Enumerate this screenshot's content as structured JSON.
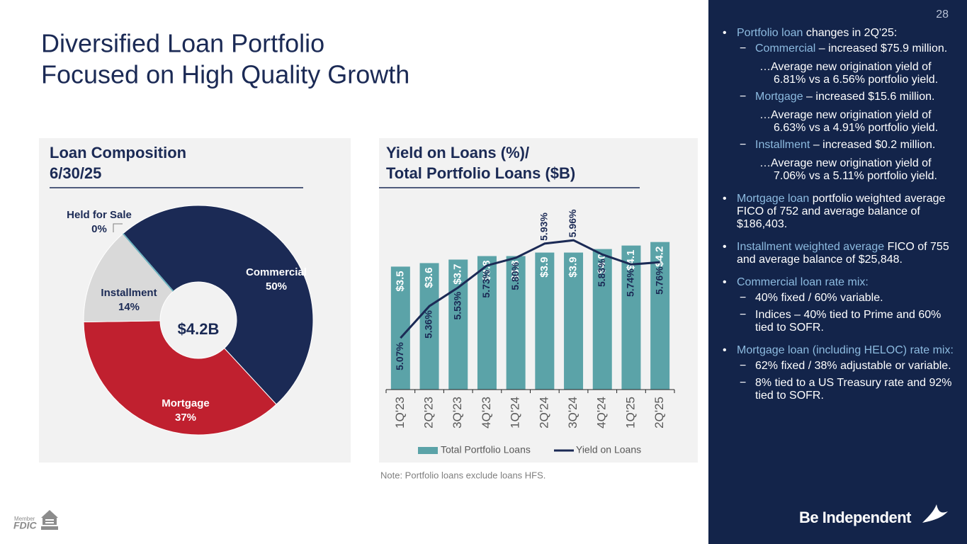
{
  "title": [
    "Diversified Loan Portfolio",
    "Focused on High Quality Growth"
  ],
  "page_number": "28",
  "chart_data": [
    {
      "type": "donut",
      "title": [
        "Loan Composition",
        "6/30/25"
      ],
      "center_label": "$4.2B",
      "categories": [
        "Commercial",
        "Mortgage",
        "Installment",
        "Held for Sale"
      ],
      "values": [
        50,
        37,
        14,
        0
      ],
      "value_labels": [
        "50%",
        "37%",
        "14%",
        "0%"
      ],
      "colors": [
        "#1b2a55",
        "#c0202f",
        "#d9d9d9",
        "#6fb3c0"
      ]
    },
    {
      "type": "bar_line",
      "title": [
        "Yield on Loans (%)/",
        "Total Portfolio Loans ($B)"
      ],
      "categories": [
        "1Q'23",
        "2Q'23",
        "3Q'23",
        "4Q'23",
        "1Q'24",
        "2Q'24",
        "3Q'24",
        "4Q'24",
        "1Q'25",
        "2Q'25"
      ],
      "ylim": [
        0,
        5
      ],
      "y2lim": [
        4.6,
        6.2
      ],
      "series": [
        {
          "name": "Total Portfolio Loans",
          "color": "#5ba3a8",
          "kind": "bar",
          "values": [
            3.5,
            3.6,
            3.7,
            3.8,
            3.8,
            3.9,
            3.9,
            4.0,
            4.1,
            4.2
          ],
          "value_labels": [
            "$3.5",
            "$3.6",
            "$3.7",
            "$3.8",
            "$3.8",
            "$3.9",
            "$3.9",
            "$4.0",
            "$4.1",
            "$4.2"
          ]
        },
        {
          "name": "Yield on Loans",
          "color": "#1b2a55",
          "kind": "line",
          "axis": "y2",
          "values": [
            5.07,
            5.36,
            5.53,
            5.73,
            5.8,
            5.93,
            5.96,
            5.83,
            5.74,
            5.76
          ],
          "value_labels": [
            "5.07%",
            "5.36%",
            "5.53%",
            "5.73%",
            "5.80%",
            "5.93%",
            "5.96%",
            "5.83%",
            "5.74%",
            "5.76%"
          ]
        }
      ],
      "legend": "bottom"
    }
  ],
  "note": "Note: Portfolio loans exclude loans HFS.",
  "bullets": [
    {
      "lead": "Portfolio loan",
      "text": " changes in 2Q'25:",
      "subs": [
        {
          "lead": "Commercial",
          "text": " – increased $75.9 million.",
          "note": "…Average new origination yield of 6.81% vs a 6.56% portfolio yield."
        },
        {
          "lead": "Mortgage",
          "text": " – increased $15.6 million.",
          "note": "…Average new origination yield of 6.63% vs a 4.91% portfolio yield."
        },
        {
          "lead": "Installment",
          "text": " – increased $0.2 million.",
          "note": "…Average new origination yield of 7.06% vs a 5.11% portfolio yield."
        }
      ]
    },
    {
      "lead": "Mortgage loan",
      "text": " portfolio weighted average FICO of 752 and average balance of $186,403."
    },
    {
      "lead": "Installment weighted average",
      "text": " FICO of 755 and average balance of $25,848."
    },
    {
      "lead": "Commercial loan rate mix:",
      "subs": [
        {
          "text": "40% fixed / 60% variable."
        },
        {
          "text": "Indices –  40% tied to Prime and 60% tied to SOFR."
        }
      ]
    },
    {
      "lead": "Mortgage loan (including HELOC) rate mix:",
      "subs": [
        {
          "text": "62% fixed / 38% adjustable or variable."
        },
        {
          "text": "8% tied to a US Treasury rate and 92% tied to SOFR."
        }
      ]
    }
  ],
  "brand": "Be Independent",
  "member": "Member",
  "fdic": "FDIC"
}
